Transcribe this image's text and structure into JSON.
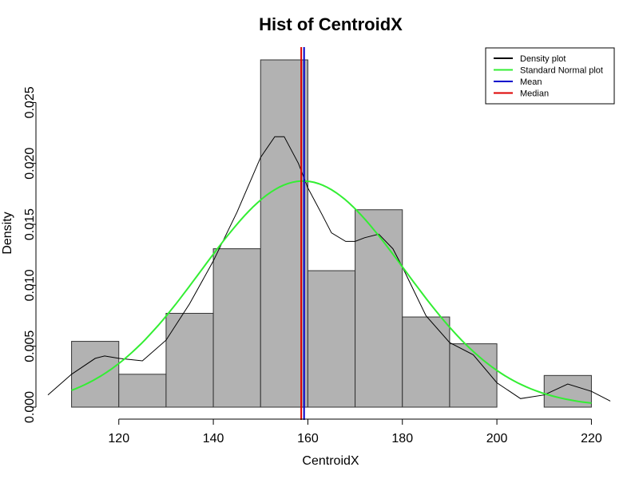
{
  "chart_data": {
    "type": "bar",
    "title": "Hist of CentroidX",
    "xlabel": "CentroidX",
    "ylabel": "Density",
    "xlim": [
      105,
      225
    ],
    "ylim": [
      0,
      0.0285
    ],
    "x_ticks": [
      120,
      140,
      160,
      180,
      200,
      220
    ],
    "x_tick_labels": [
      "120",
      "140",
      "160",
      "180",
      "200",
      "220"
    ],
    "y_ticks": [
      0.0,
      0.005,
      0.01,
      0.015,
      0.02,
      0.025
    ],
    "y_tick_labels": [
      "0.000",
      "0.005",
      "0.010",
      "0.015",
      "0.020",
      "0.025"
    ],
    "grid": false,
    "legend_position": "top-right",
    "histogram": {
      "bins": [
        {
          "from": 110,
          "to": 120,
          "density": 0.0054
        },
        {
          "from": 120,
          "to": 130,
          "density": 0.0027
        },
        {
          "from": 130,
          "to": 140,
          "density": 0.0077
        },
        {
          "from": 140,
          "to": 150,
          "density": 0.013
        },
        {
          "from": 150,
          "to": 160,
          "density": 0.0285
        },
        {
          "from": 160,
          "to": 170,
          "density": 0.0112
        },
        {
          "from": 170,
          "to": 180,
          "density": 0.0162
        },
        {
          "from": 180,
          "to": 190,
          "density": 0.0074
        },
        {
          "from": 190,
          "to": 200,
          "density": 0.0052
        },
        {
          "from": 200,
          "to": 210,
          "density": 0.0
        },
        {
          "from": 210,
          "to": 220,
          "density": 0.0026
        }
      ],
      "fill": "#b2b2b2",
      "stroke": "#333333"
    },
    "series": [
      {
        "name": "Density plot",
        "color": "#000000",
        "x": [
          105,
          110,
          115,
          117,
          120,
          125,
          130,
          135,
          140,
          145,
          150,
          153,
          155,
          158,
          160,
          163,
          165,
          168,
          170,
          172,
          175,
          178,
          180,
          185,
          190,
          195,
          200,
          205,
          210,
          215,
          220,
          224
        ],
        "y": [
          0.001,
          0.0027,
          0.004,
          0.0042,
          0.004,
          0.0038,
          0.0055,
          0.0085,
          0.012,
          0.016,
          0.0205,
          0.0222,
          0.0222,
          0.02,
          0.018,
          0.0158,
          0.0143,
          0.0136,
          0.0136,
          0.0139,
          0.0142,
          0.013,
          0.0115,
          0.0075,
          0.0053,
          0.0043,
          0.002,
          0.0007,
          0.001,
          0.0019,
          0.0013,
          0.0005
        ]
      },
      {
        "name": "Standard Normal plot",
        "color": "#33ee33",
        "mean": 159,
        "sd": 21.5,
        "x_range": [
          110,
          220
        ]
      },
      {
        "name": "Mean",
        "color": "#0000cc",
        "vline": 159.2
      },
      {
        "name": "Median",
        "color": "#dd0000",
        "vline": 158.6
      }
    ]
  }
}
